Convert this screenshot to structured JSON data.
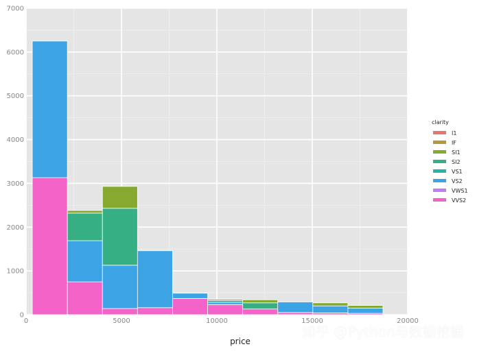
{
  "chart_data": {
    "type": "bar",
    "stacked": true,
    "xlabel": "price",
    "ylabel": "",
    "xlim": [
      0,
      20000
    ],
    "ylim": [
      0,
      7000
    ],
    "xticks": [
      0,
      5000,
      10000,
      15000,
      20000
    ],
    "yticks": [
      0,
      1000,
      2000,
      3000,
      4000,
      5000,
      6000,
      7000
    ],
    "grid": true,
    "legend_position": "right",
    "legend_title": "clarity",
    "bin_edges": [
      326,
      2163.9,
      4001.8,
      5839.7,
      7677.6,
      9515.5,
      11353.4,
      13191.3,
      15029.2,
      16867.1,
      18705
    ],
    "series": [
      {
        "name": "I1",
        "color": "#E8766D",
        "values": [
          0,
          0,
          0,
          0,
          0,
          0,
          0,
          0,
          0,
          0
        ]
      },
      {
        "name": "VVS2",
        "color": "#F464C8",
        "values": [
          3130,
          750,
          140,
          160,
          370,
          230,
          130,
          50,
          40,
          30
        ]
      },
      {
        "name": "VWS1",
        "color": "#C07EF0",
        "values": [
          0,
          0,
          0,
          0,
          0,
          0,
          0,
          0,
          0,
          0
        ]
      },
      {
        "name": "VS2",
        "color": "#3CA4E4",
        "values": [
          3120,
          940,
          990,
          1300,
          120,
          50,
          0,
          240,
          160,
          120
        ]
      },
      {
        "name": "VS1",
        "color": "#2AB2AA",
        "values": [
          0,
          0,
          0,
          0,
          0,
          40,
          0,
          0,
          0,
          0
        ]
      },
      {
        "name": "SI2",
        "color": "#35AF83",
        "values": [
          0,
          630,
          1300,
          0,
          0,
          0,
          140,
          0,
          0,
          0
        ]
      },
      {
        "name": "SI1",
        "color": "#86AA30",
        "values": [
          0,
          60,
          500,
          0,
          0,
          30,
          70,
          0,
          70,
          60
        ]
      },
      {
        "name": "IF",
        "color": "#B39A36",
        "values": [
          0,
          0,
          0,
          0,
          0,
          0,
          0,
          0,
          0,
          0
        ]
      }
    ],
    "legend_order": [
      "I1",
      "IF",
      "SI1",
      "SI2",
      "VS1",
      "VS2",
      "VWS1",
      "VVS2"
    ]
  },
  "watermark": "知乎 @Python与数据挖掘"
}
